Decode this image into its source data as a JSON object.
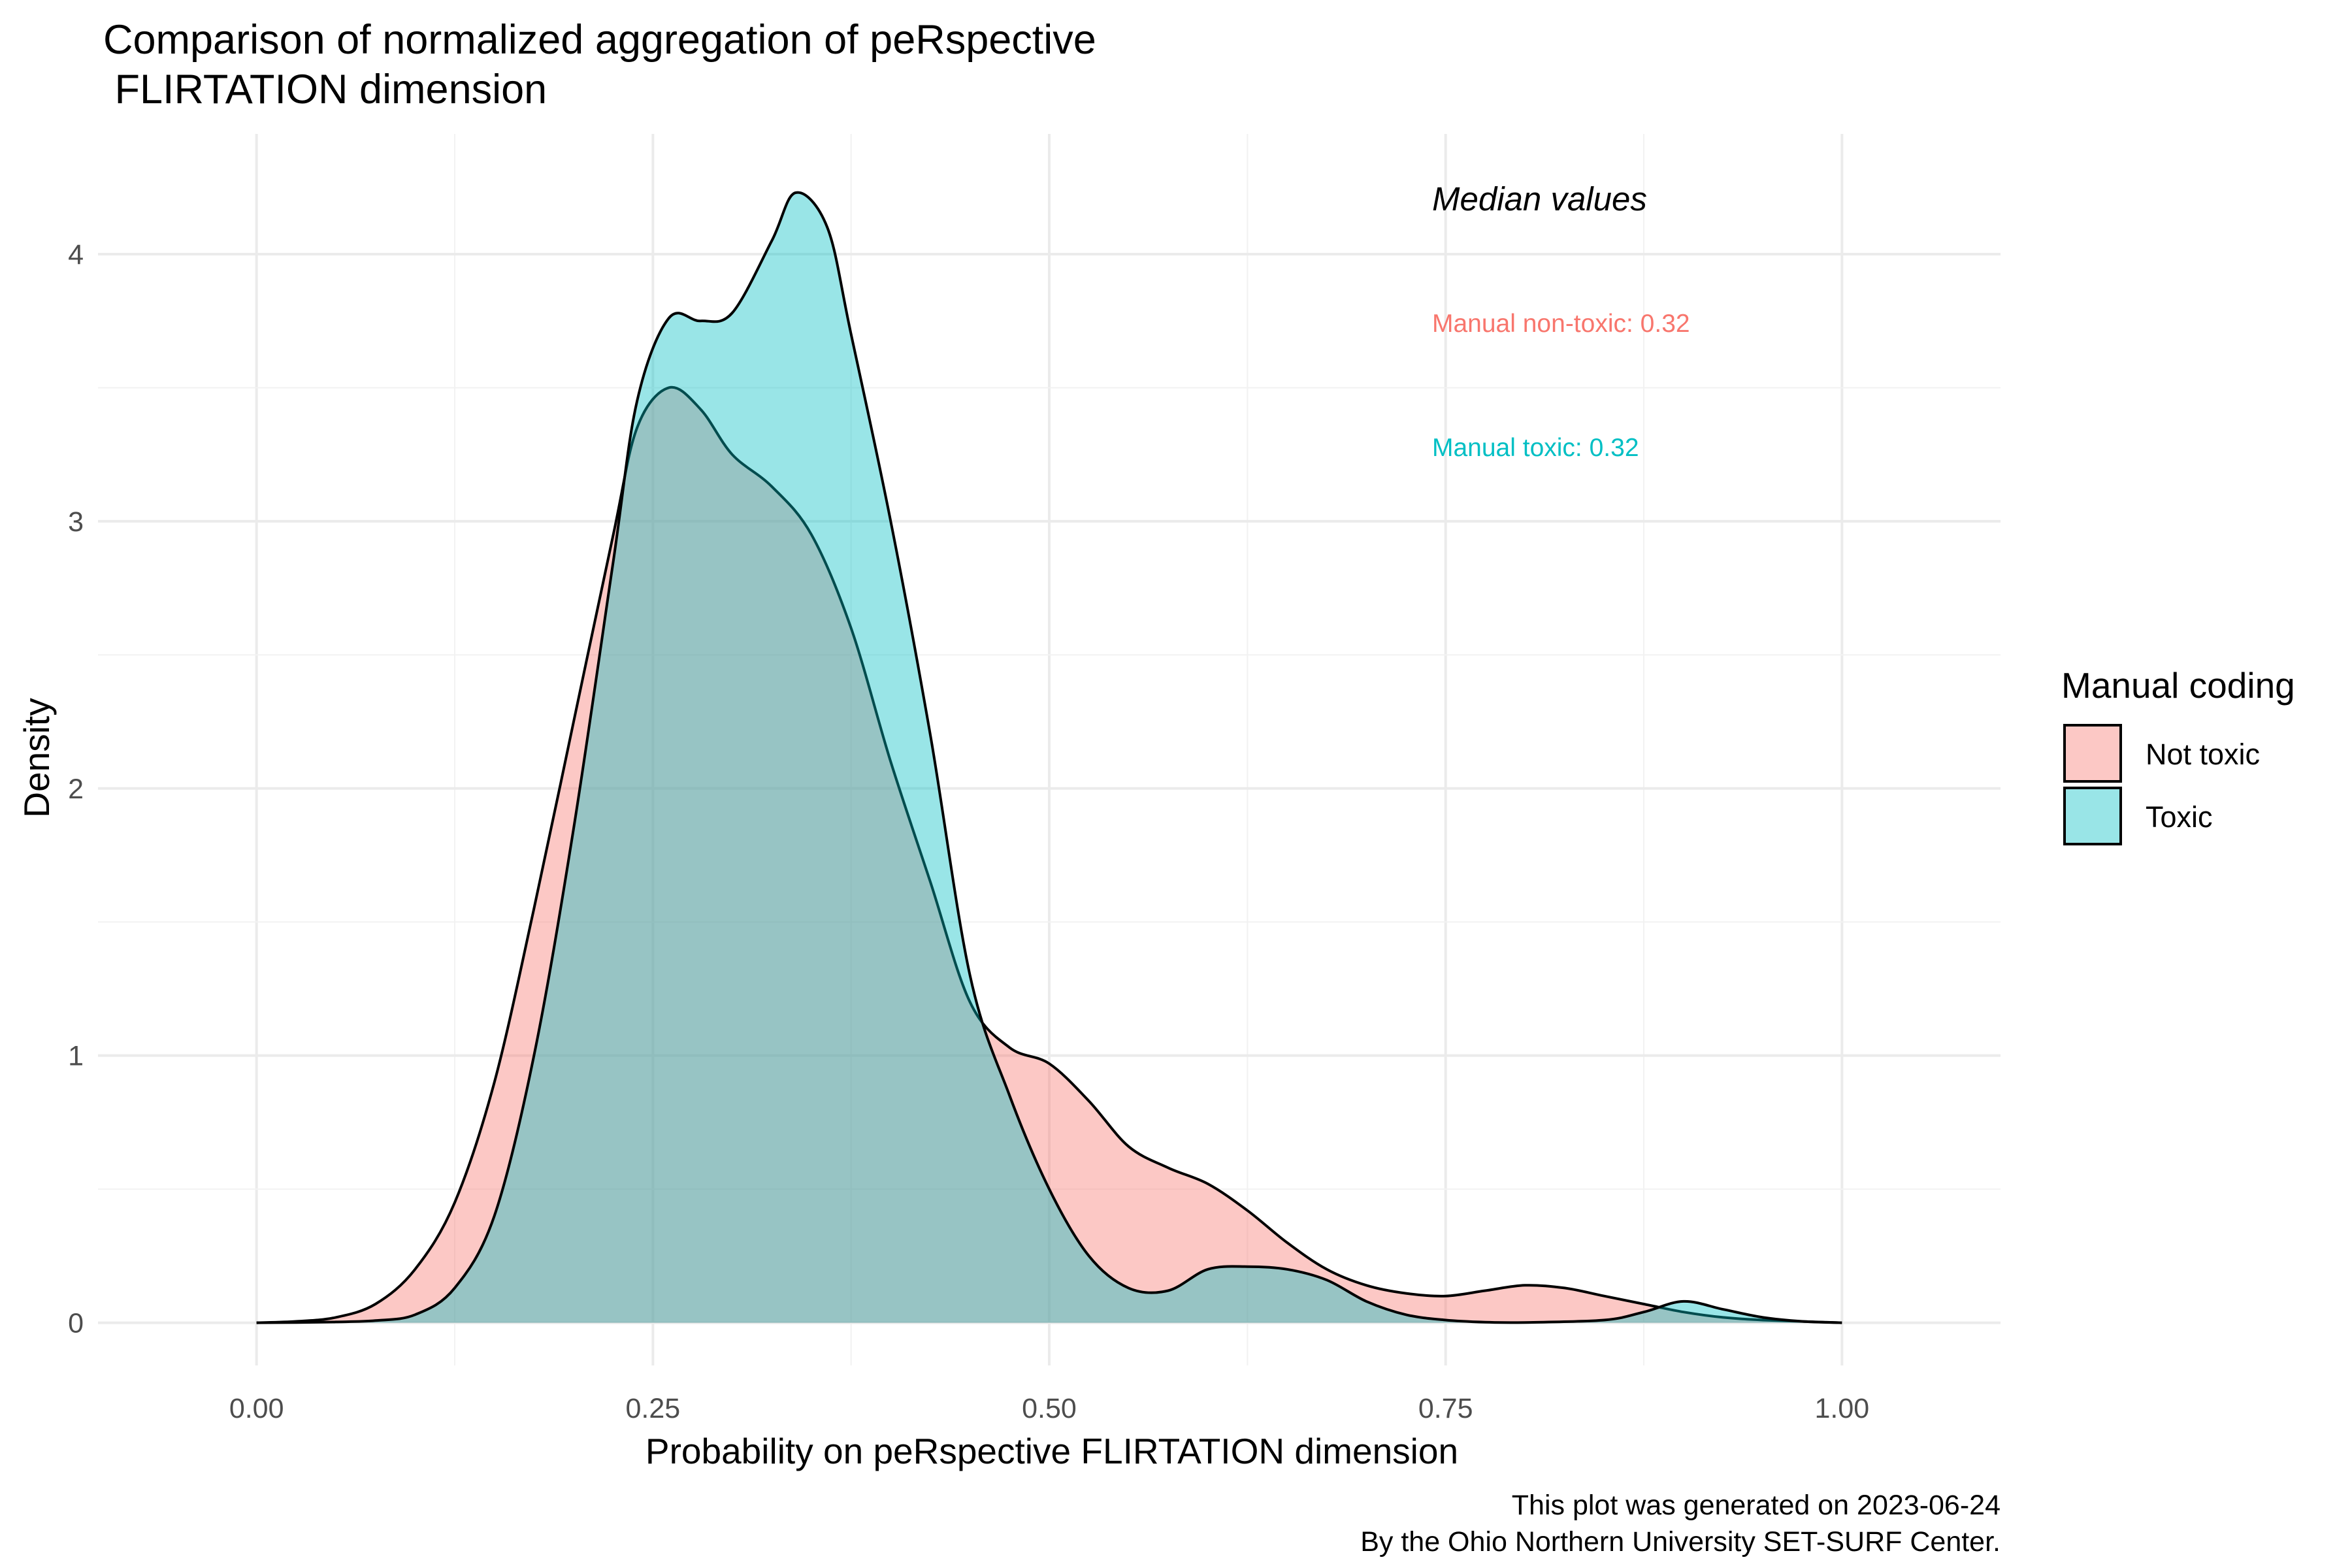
{
  "chart_data": {
    "type": "area",
    "subtype": "density",
    "title_lines": [
      "Comparison of normalized aggregation of peRspective",
      " FLIRTATION dimension"
    ],
    "xlabel": "Probability on peRspective FLIRTATION dimension",
    "ylabel": "Density",
    "xlim": [
      -0.1,
      1.1
    ],
    "ylim": [
      -0.16,
      4.45
    ],
    "x_ticks": [
      0,
      0.25,
      0.5,
      0.75,
      1
    ],
    "x_tick_labels": [
      "0.00",
      "0.25",
      "0.50",
      "0.75",
      "1.00"
    ],
    "y_ticks": [
      0,
      1,
      2,
      3,
      4
    ],
    "y_tick_labels": [
      "0",
      "1",
      "2",
      "3",
      "4"
    ],
    "grid": true,
    "legend": {
      "title": "Manual coding",
      "position": "right"
    },
    "series": [
      {
        "name": "Not toxic",
        "color": "#F8766D",
        "fill_opacity": 0.4,
        "points": [
          [
            0,
            0
          ],
          [
            0.025,
            0.005
          ],
          [
            0.05,
            0.02
          ],
          [
            0.075,
            0.07
          ],
          [
            0.1,
            0.2
          ],
          [
            0.125,
            0.45
          ],
          [
            0.15,
            0.9
          ],
          [
            0.175,
            1.55
          ],
          [
            0.2,
            2.25
          ],
          [
            0.225,
            2.95
          ],
          [
            0.24,
            3.35
          ],
          [
            0.26,
            3.5
          ],
          [
            0.28,
            3.42
          ],
          [
            0.3,
            3.25
          ],
          [
            0.325,
            3.13
          ],
          [
            0.35,
            2.95
          ],
          [
            0.375,
            2.6
          ],
          [
            0.4,
            2.1
          ],
          [
            0.425,
            1.65
          ],
          [
            0.45,
            1.2
          ],
          [
            0.475,
            1.03
          ],
          [
            0.5,
            0.97
          ],
          [
            0.525,
            0.83
          ],
          [
            0.55,
            0.66
          ],
          [
            0.575,
            0.58
          ],
          [
            0.6,
            0.52
          ],
          [
            0.625,
            0.42
          ],
          [
            0.65,
            0.3
          ],
          [
            0.675,
            0.2
          ],
          [
            0.7,
            0.14
          ],
          [
            0.725,
            0.11
          ],
          [
            0.75,
            0.1
          ],
          [
            0.775,
            0.12
          ],
          [
            0.8,
            0.14
          ],
          [
            0.825,
            0.13
          ],
          [
            0.85,
            0.1
          ],
          [
            0.875,
            0.07
          ],
          [
            0.9,
            0.04
          ],
          [
            0.925,
            0.02
          ],
          [
            0.95,
            0.01
          ],
          [
            1,
            0
          ]
        ]
      },
      {
        "name": "Toxic",
        "color": "#00BFC4",
        "fill_opacity": 0.4,
        "points": [
          [
            0,
            0
          ],
          [
            0.025,
            0.001
          ],
          [
            0.05,
            0.003
          ],
          [
            0.075,
            0.008
          ],
          [
            0.1,
            0.03
          ],
          [
            0.125,
            0.13
          ],
          [
            0.15,
            0.4
          ],
          [
            0.175,
            1.0
          ],
          [
            0.2,
            1.85
          ],
          [
            0.225,
            2.85
          ],
          [
            0.24,
            3.45
          ],
          [
            0.26,
            3.76
          ],
          [
            0.28,
            3.75
          ],
          [
            0.3,
            3.78
          ],
          [
            0.325,
            4.05
          ],
          [
            0.34,
            4.23
          ],
          [
            0.36,
            4.1
          ],
          [
            0.375,
            3.7
          ],
          [
            0.4,
            3.0
          ],
          [
            0.425,
            2.2
          ],
          [
            0.45,
            1.3
          ],
          [
            0.475,
            0.85
          ],
          [
            0.5,
            0.5
          ],
          [
            0.525,
            0.25
          ],
          [
            0.55,
            0.13
          ],
          [
            0.575,
            0.12
          ],
          [
            0.6,
            0.2
          ],
          [
            0.625,
            0.21
          ],
          [
            0.65,
            0.2
          ],
          [
            0.675,
            0.16
          ],
          [
            0.7,
            0.08
          ],
          [
            0.725,
            0.03
          ],
          [
            0.75,
            0.01
          ],
          [
            0.775,
            0.002
          ],
          [
            0.8,
            0.001
          ],
          [
            0.85,
            0.01
          ],
          [
            0.875,
            0.04
          ],
          [
            0.9,
            0.08
          ],
          [
            0.925,
            0.05
          ],
          [
            0.95,
            0.02
          ],
          [
            0.975,
            0.005
          ],
          [
            1,
            0
          ]
        ]
      }
    ],
    "annotations": {
      "heading": "Median values",
      "items": [
        {
          "text": "Manual non-toxic: 0.32",
          "color": "#F8766D"
        },
        {
          "text": "Manual toxic: 0.32",
          "color": "#00BFC4"
        }
      ]
    },
    "caption_lines": [
      "This plot was generated on 2023-06-24",
      "By the Ohio Northern University SET-SURF Center."
    ]
  }
}
